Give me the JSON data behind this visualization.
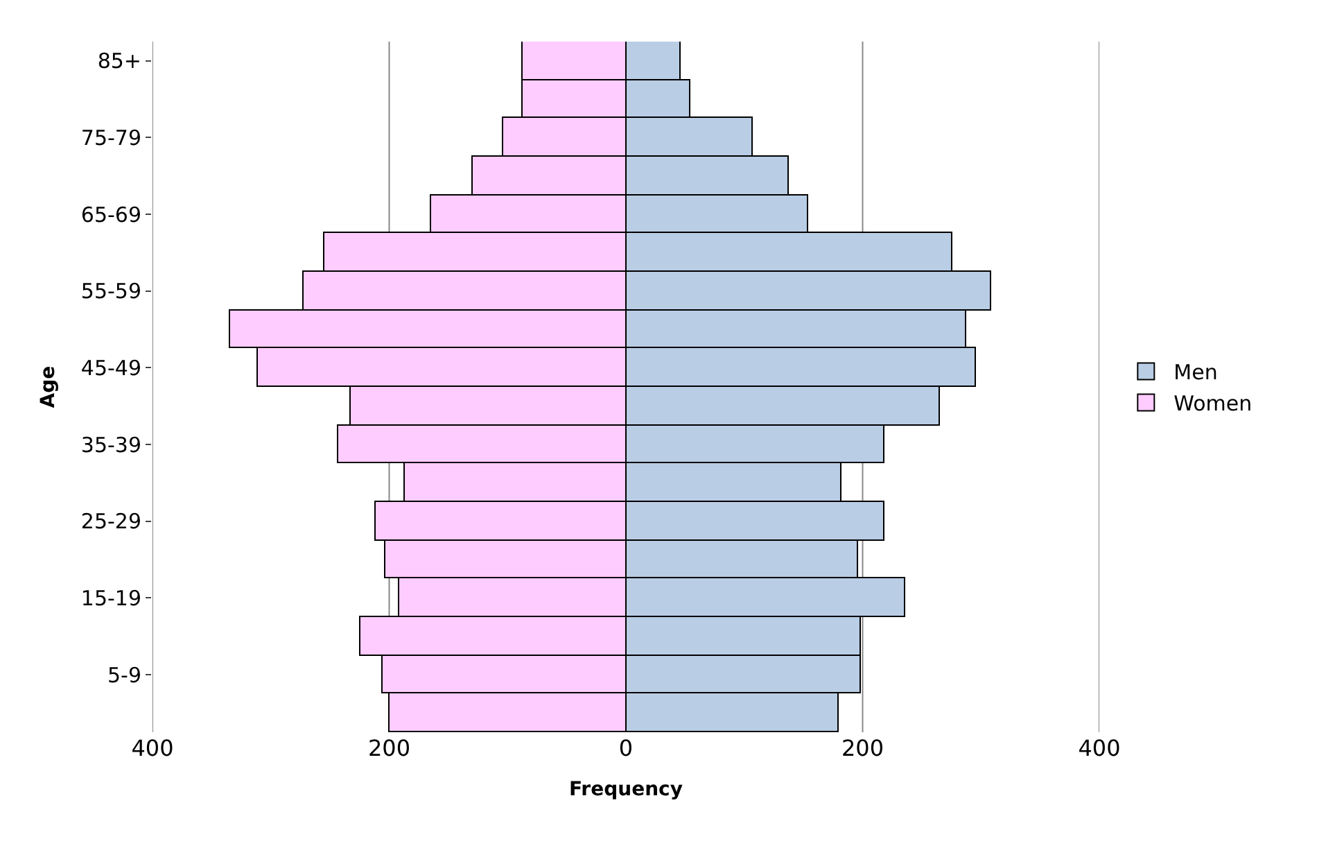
{
  "chart_data": {
    "type": "bar",
    "orientation": "horizontal",
    "xlabel": "Frequency",
    "ylabel": "Age",
    "categories": [
      "85+",
      null,
      "75-79",
      null,
      "65-69",
      null,
      "55-59",
      null,
      "45-49",
      null,
      "35-39",
      null,
      "25-29",
      null,
      "15-19",
      null,
      "5-9",
      null
    ],
    "series": [
      {
        "name": "Men",
        "color": "#b9cde5",
        "values": [
          46,
          54,
          107,
          138,
          154,
          276,
          309,
          288,
          296,
          265,
          218,
          182,
          218,
          196,
          236,
          199,
          199,
          180
        ]
      },
      {
        "name": "Women",
        "color": "#ffccff",
        "values": [
          -87,
          -87,
          -104,
          -129,
          -164,
          -255,
          -272,
          -334,
          -311,
          -233,
          -243,
          -187,
          -212,
          -203,
          -192,
          -224,
          -205,
          -200
        ]
      }
    ],
    "xlim": [
      -400,
      400
    ],
    "xticks": [
      {
        "value": -400,
        "label": "400"
      },
      {
        "value": -200,
        "label": "200"
      },
      0,
      200,
      400
    ],
    "grid": "x",
    "legend": "right",
    "stacked": true
  }
}
